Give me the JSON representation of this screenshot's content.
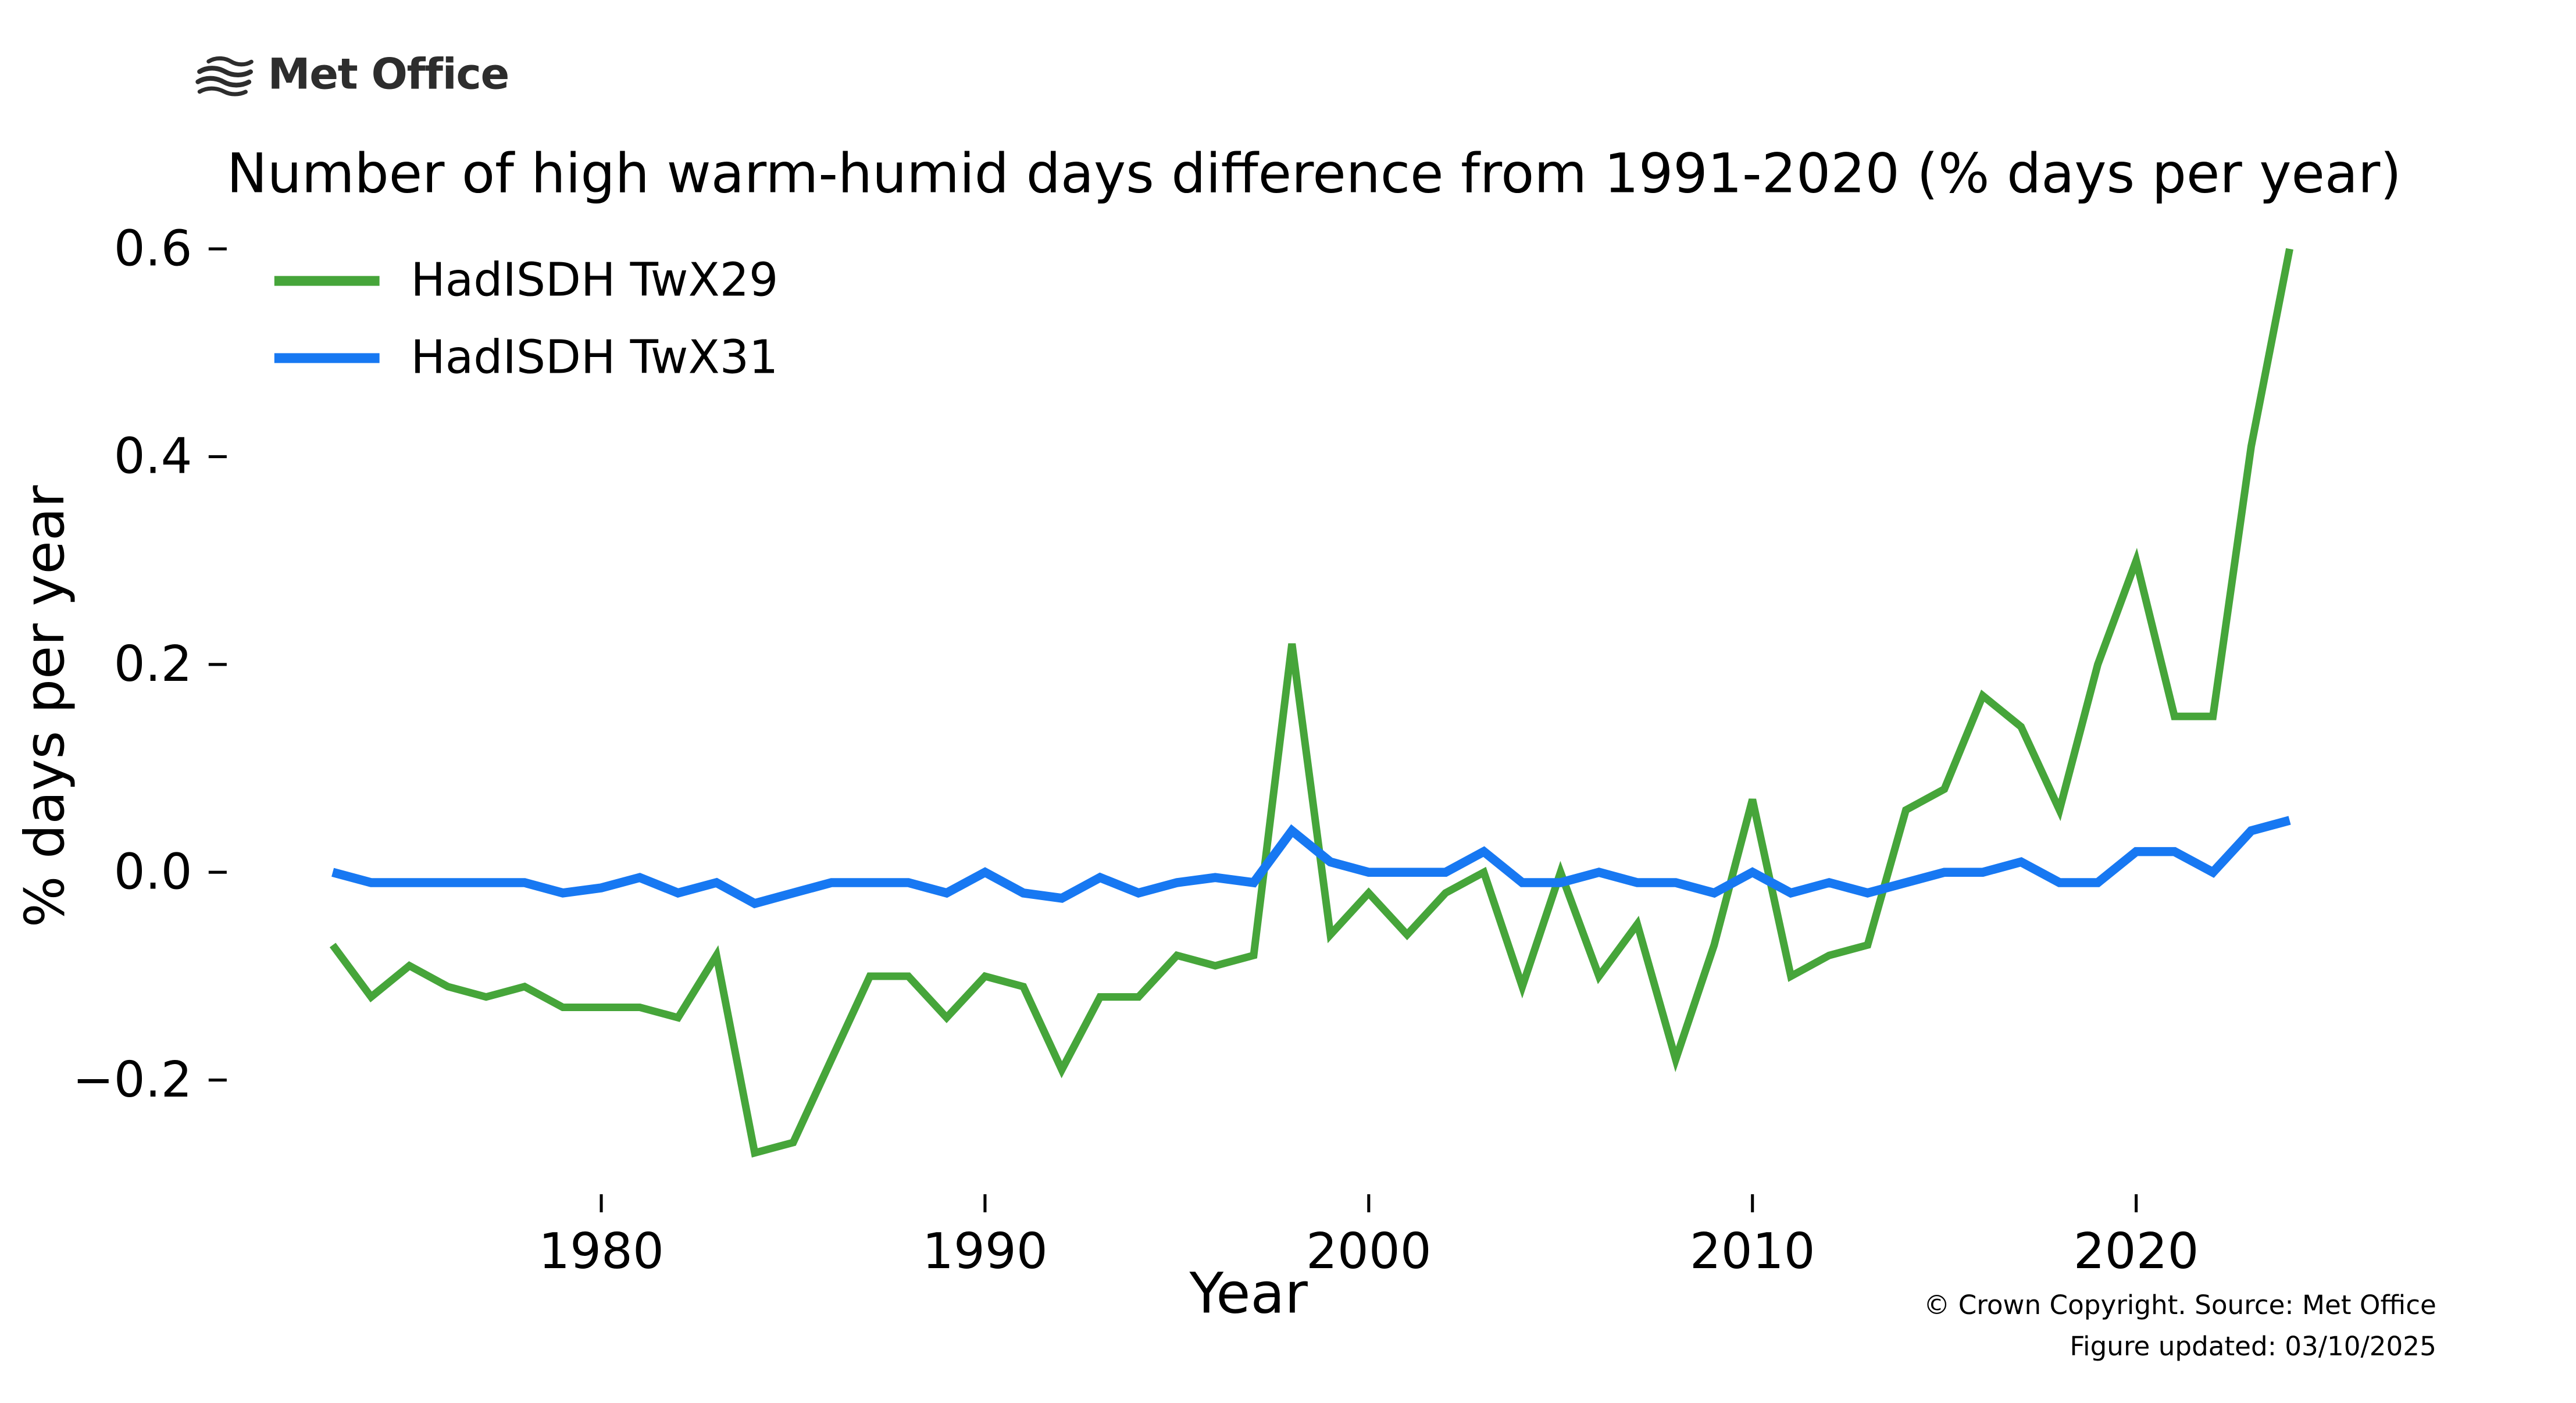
{
  "header": {
    "logo_text": "Met Office"
  },
  "title": "Number of high warm-humid days difference from 1991-2020 (% days per year)",
  "legend": [
    {
      "label": "HadISDH TwX29",
      "color": "#46a53a"
    },
    {
      "label": "HadISDH TwX31",
      "color": "#1778f2"
    }
  ],
  "axes": {
    "xlabel": "Year",
    "ylabel": "% days per year",
    "xticks": [
      {
        "value": 1980,
        "label": "1980"
      },
      {
        "value": 1990,
        "label": "1990"
      },
      {
        "value": 2000,
        "label": "2000"
      },
      {
        "value": 2010,
        "label": "2010"
      },
      {
        "value": 2020,
        "label": "2020"
      }
    ],
    "yticks": [
      {
        "value": 0.6,
        "label": "0.6"
      },
      {
        "value": 0.4,
        "label": "0.4"
      },
      {
        "value": 0.2,
        "label": "0.2"
      },
      {
        "value": 0.0,
        "label": "0.0"
      },
      {
        "value": -0.2,
        "label": "−0.2"
      }
    ]
  },
  "footer": {
    "line1": "© Crown Copyright. Source: Met Office",
    "line2": "Figure updated: 03/10/2025"
  },
  "chart_data": {
    "type": "line",
    "title": "Number of high warm-humid days difference from 1991-2020 (% days per year)",
    "xlabel": "Year",
    "ylabel": "% days per year",
    "xlim": [
      1971.5,
      2026
    ],
    "ylim": [
      -0.31,
      0.62
    ],
    "grid": false,
    "legend_position": "upper-left",
    "x": [
      1973,
      1974,
      1975,
      1976,
      1977,
      1978,
      1979,
      1980,
      1981,
      1982,
      1983,
      1984,
      1985,
      1986,
      1987,
      1988,
      1989,
      1990,
      1991,
      1992,
      1993,
      1994,
      1995,
      1996,
      1997,
      1998,
      1999,
      2000,
      2001,
      2002,
      2003,
      2004,
      2005,
      2006,
      2007,
      2008,
      2009,
      2010,
      2011,
      2012,
      2013,
      2014,
      2015,
      2016,
      2017,
      2018,
      2019,
      2020,
      2021,
      2022,
      2023,
      2024
    ],
    "series": [
      {
        "name": "HadISDH TwX29",
        "color": "#46a53a",
        "values": [
          -0.07,
          -0.12,
          -0.09,
          -0.11,
          -0.12,
          -0.11,
          -0.13,
          -0.13,
          -0.13,
          -0.14,
          -0.08,
          -0.27,
          -0.26,
          -0.18,
          -0.1,
          -0.1,
          -0.14,
          -0.1,
          -0.11,
          -0.19,
          -0.12,
          -0.12,
          -0.08,
          -0.09,
          -0.08,
          0.22,
          -0.06,
          -0.02,
          -0.06,
          -0.02,
          0.0,
          -0.11,
          0.0,
          -0.1,
          -0.05,
          -0.18,
          -0.07,
          0.07,
          -0.1,
          -0.08,
          -0.07,
          0.06,
          0.08,
          0.17,
          0.14,
          0.06,
          0.2,
          0.3,
          0.15,
          0.15,
          0.41,
          0.6
        ]
      },
      {
        "name": "HadISDH TwX31",
        "color": "#1778f2",
        "values": [
          0.0,
          -0.01,
          -0.01,
          -0.01,
          -0.01,
          -0.01,
          -0.02,
          -0.015,
          -0.005,
          -0.02,
          -0.01,
          -0.03,
          -0.02,
          -0.01,
          -0.01,
          -0.01,
          -0.02,
          0.0,
          -0.02,
          -0.025,
          -0.005,
          -0.02,
          -0.01,
          -0.005,
          -0.01,
          0.04,
          0.01,
          0.0,
          0.0,
          0.0,
          0.02,
          -0.01,
          -0.01,
          0.0,
          -0.01,
          -0.01,
          -0.02,
          0.0,
          -0.02,
          -0.01,
          -0.02,
          -0.01,
          0.0,
          0.0,
          0.01,
          -0.01,
          -0.01,
          0.02,
          0.02,
          0.0,
          0.04,
          0.05
        ]
      }
    ]
  }
}
